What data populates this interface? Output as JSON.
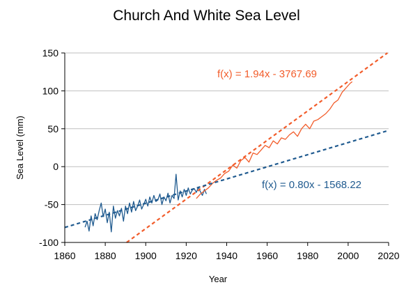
{
  "chart_data": {
    "type": "line",
    "title": "Church And White Sea Level",
    "xlabel": "Year",
    "ylabel": "Sea Level (mm)",
    "xlim": [
      1860,
      2020
    ],
    "ylim": [
      -100,
      150
    ],
    "x_ticks": [
      1860,
      1880,
      1900,
      1920,
      1940,
      1960,
      1980,
      2000,
      2020
    ],
    "y_ticks": [
      -100,
      -50,
      0,
      50,
      100,
      150
    ],
    "grid": "horizontal",
    "colors": {
      "early": "#1f5a8f",
      "late": "#f25c2a",
      "grid": "#bfbfbf",
      "axis": "#000000"
    },
    "series": [
      {
        "color_key": "early",
        "x": [
          1870,
          1871,
          1872,
          1873,
          1874,
          1875,
          1876,
          1877,
          1878,
          1879,
          1880,
          1881,
          1882,
          1883,
          1884,
          1885,
          1886,
          1887,
          1888,
          1889,
          1890,
          1891,
          1892,
          1893,
          1894,
          1895,
          1896,
          1897,
          1898,
          1899,
          1900,
          1901,
          1902,
          1903,
          1904,
          1905,
          1906,
          1907,
          1908,
          1909,
          1910,
          1911,
          1912,
          1913,
          1914,
          1915,
          1916,
          1917,
          1918,
          1919,
          1920,
          1921,
          1922,
          1923,
          1924,
          1925,
          1926,
          1927,
          1928,
          1929,
          1930
        ],
        "y": [
          -80,
          -72,
          -85,
          -65,
          -78,
          -62,
          -70,
          -58,
          -48,
          -66,
          -56,
          -74,
          -60,
          -86,
          -52,
          -68,
          -58,
          -65,
          -55,
          -72,
          -52,
          -62,
          -48,
          -60,
          -46,
          -58,
          -52,
          -44,
          -56,
          -50,
          -43,
          -52,
          -40,
          -48,
          -38,
          -46,
          -44,
          -36,
          -50,
          -40,
          -45,
          -35,
          -48,
          -38,
          -42,
          -10,
          -44,
          -32,
          -40,
          -30,
          -38,
          -28,
          -36,
          -31,
          -29,
          -34,
          -27,
          -33,
          -38,
          -30,
          -36
        ]
      },
      {
        "color_key": "late",
        "x": [
          1925,
          1927,
          1929,
          1931,
          1933,
          1935,
          1937,
          1939,
          1941,
          1943,
          1945,
          1947,
          1949,
          1951,
          1953,
          1955,
          1957,
          1959,
          1961,
          1963,
          1965,
          1967,
          1969,
          1971,
          1973,
          1975,
          1977,
          1979,
          1981,
          1983,
          1985,
          1987,
          1989,
          1991,
          1993,
          1995,
          1997,
          1999,
          2001,
          2002
        ],
        "y": [
          -42,
          -36,
          -32,
          -28,
          -22,
          -18,
          -15,
          -9,
          -6,
          2,
          -2,
          8,
          12,
          6,
          18,
          16,
          22,
          28,
          25,
          34,
          30,
          38,
          36,
          42,
          46,
          40,
          50,
          56,
          50,
          60,
          62,
          66,
          70,
          76,
          84,
          88,
          98,
          104,
          110,
          112
        ]
      }
    ],
    "fits": [
      {
        "label": "f(x) = 1.94x - 3767.69",
        "slope": 1.94,
        "intercept": -3767.69,
        "color_key": "late"
      },
      {
        "label": "f(x) = 0.80x - 1568.22",
        "slope": 0.8,
        "intercept": -1568.22,
        "color_key": "early"
      }
    ]
  }
}
